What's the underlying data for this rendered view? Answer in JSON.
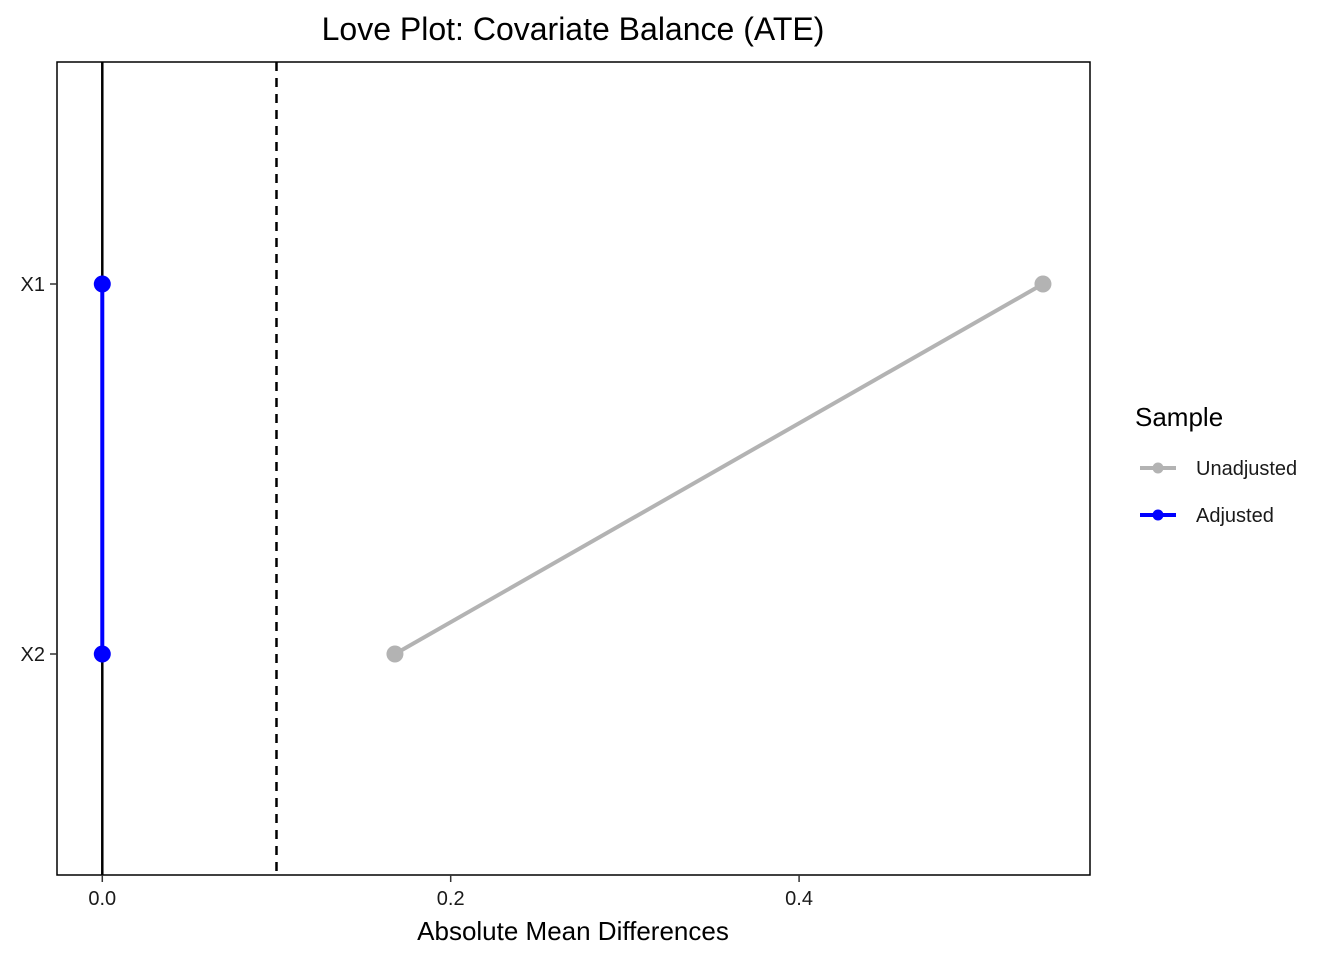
{
  "chart_data": {
    "type": "dot",
    "title": "Love Plot: Covariate Balance (ATE)",
    "xlabel": "Absolute Mean Differences",
    "ylabel": "",
    "xlim": [
      -0.026,
      0.567
    ],
    "x_ticks": [
      "0.0",
      "0.2",
      "0.4"
    ],
    "x_tick_values": [
      0.0,
      0.2,
      0.4
    ],
    "categories": [
      "X1",
      "X2"
    ],
    "series": [
      {
        "name": "Unadjusted",
        "color": "#b3b3b3",
        "values": [
          0.54,
          0.168
        ]
      },
      {
        "name": "Adjusted",
        "color": "#0000ff",
        "values": [
          0.0,
          0.0
        ]
      }
    ],
    "reference_lines": [
      {
        "x": 0.0,
        "style": "solid",
        "color": "#000000"
      },
      {
        "x": 0.1,
        "style": "dashed",
        "color": "#000000"
      }
    ],
    "legend": {
      "title": "Sample",
      "position": "right"
    },
    "grid": false
  }
}
